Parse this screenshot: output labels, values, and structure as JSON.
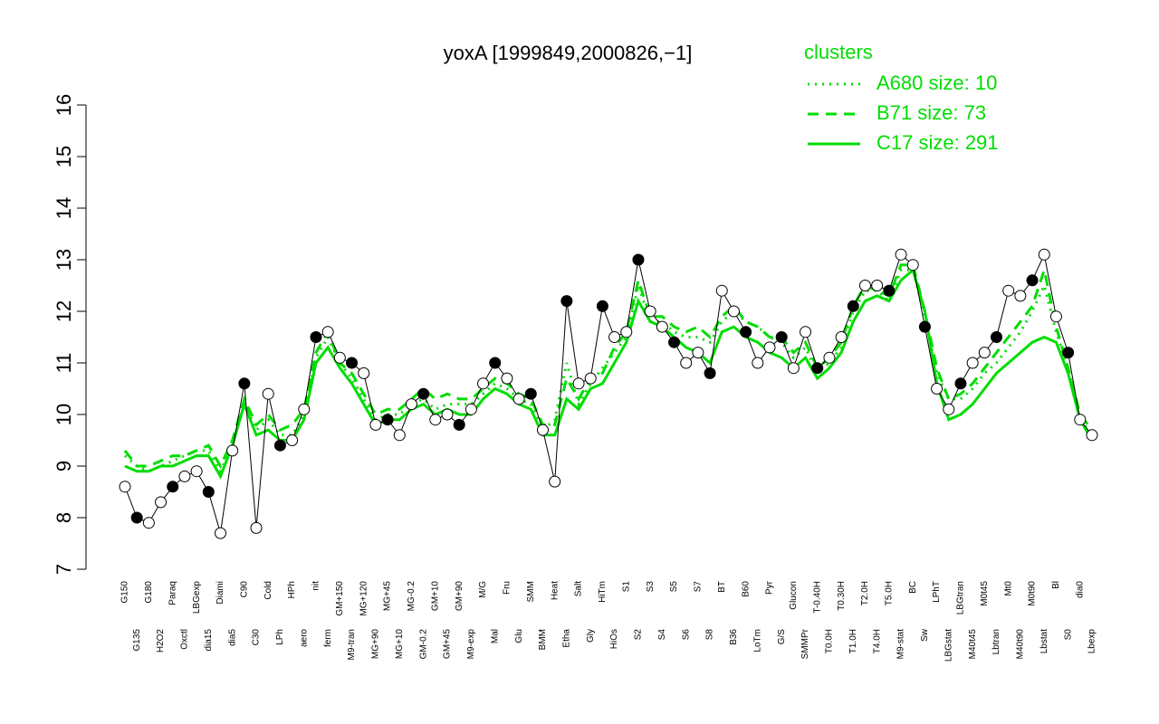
{
  "chart_data": {
    "type": "line",
    "title": "yoxA [1999849,2000826,−1]",
    "legend_title": "clusters",
    "categories": [
      "G150",
      "G135",
      "G180",
      "H2O2",
      "Paraq",
      "Oxctl",
      "LBGexp",
      "dia15",
      "Diami",
      "dia5",
      "C90",
      "C30",
      "Cold",
      "LPh",
      "HPh",
      "aero",
      "nit",
      "ferm",
      "GM+150",
      "M9-tran",
      "MG+120",
      "MG+90",
      "MG+45",
      "MG+10",
      "MG-0.2",
      "GM-0.2",
      "GM+10",
      "GM+45",
      "GM+90",
      "M9-exp",
      "M/G",
      "Mal",
      "Fru",
      "Glu",
      "SMM",
      "BMM",
      "Heat",
      "Etha",
      "Salt",
      "Gly",
      "HiTm",
      "HiOs",
      "S1",
      "S2",
      "S3",
      "S4",
      "S5",
      "S6",
      "S7",
      "S8",
      "BT",
      "B36",
      "B60",
      "LoTm",
      "Pyr",
      "G/S",
      "Glucon",
      "SMMPr",
      "T-0.40H",
      "T0.0H",
      "T0.30H",
      "T1.0H",
      "T2.0H",
      "T4.0H",
      "T5.0H",
      "M9-stat",
      "BC",
      "Sw",
      "LPhT",
      "LBGstat",
      "LBGtran",
      "M40t45",
      "M0t45",
      "Lbtran",
      "Mt0",
      "M40t90",
      "M0t90",
      "Lbstat",
      "Bl",
      "S0",
      "dia0",
      "Lbexp"
    ],
    "series": [
      {
        "style": "points",
        "color": "#000000",
        "values": [
          8.6,
          8.0,
          7.9,
          8.3,
          8.6,
          8.8,
          8.9,
          8.5,
          7.7,
          9.3,
          10.6,
          7.8,
          10.4,
          9.4,
          9.5,
          10.1,
          11.5,
          11.6,
          11.1,
          11.0,
          10.8,
          9.8,
          9.9,
          9.6,
          10.2,
          10.4,
          9.9,
          10.0,
          9.8,
          10.1,
          10.6,
          11.0,
          10.7,
          10.3,
          10.4,
          9.7,
          8.7,
          12.2,
          10.6,
          10.7,
          12.1,
          11.5,
          11.6,
          13.0,
          12.0,
          11.7,
          11.4,
          11.0,
          11.2,
          10.8,
          12.4,
          12.0,
          11.6,
          11.0,
          11.3,
          11.5,
          10.9,
          11.6,
          10.9,
          11.1,
          11.5,
          12.1,
          12.5,
          12.5,
          12.4,
          13.1,
          12.9,
          11.7,
          10.5,
          10.1,
          10.6,
          11.0,
          11.2,
          11.5,
          12.4,
          12.3,
          12.6,
          13.1,
          11.9,
          11.2,
          9.9,
          9.6
        ]
      },
      {
        "name": "A680 size: 10",
        "style": "dotted",
        "color": "#00dd00",
        "values": [
          9.2,
          9.0,
          8.9,
          9.0,
          9.1,
          9.2,
          9.3,
          9.3,
          8.9,
          9.4,
          10.2,
          9.7,
          9.9,
          9.6,
          9.6,
          10.0,
          11.1,
          11.5,
          11.0,
          10.7,
          10.3,
          9.9,
          10.0,
          10.0,
          10.2,
          10.3,
          10.1,
          10.2,
          10.2,
          10.2,
          10.4,
          10.6,
          10.5,
          10.3,
          10.2,
          9.7,
          9.9,
          11.0,
          10.2,
          10.6,
          10.9,
          11.2,
          11.5,
          12.5,
          11.8,
          11.8,
          11.6,
          11.5,
          11.5,
          11.4,
          11.8,
          12.0,
          11.8,
          11.7,
          11.5,
          11.4,
          11.1,
          11.3,
          10.8,
          11.0,
          11.3,
          12.0,
          12.4,
          12.4,
          12.2,
          12.8,
          12.8,
          11.9,
          10.8,
          10.3,
          10.3,
          10.5,
          10.8,
          11.0,
          11.3,
          11.6,
          12.0,
          12.5,
          11.6,
          10.9,
          9.9,
          9.6
        ]
      },
      {
        "name": "B71 size: 73",
        "style": "dashed",
        "color": "#00dd00",
        "values": [
          9.3,
          9.0,
          9.0,
          9.1,
          9.2,
          9.2,
          9.3,
          9.4,
          9.0,
          9.5,
          10.3,
          9.8,
          10.0,
          9.7,
          9.8,
          10.1,
          11.2,
          11.6,
          11.0,
          10.8,
          10.4,
          10.0,
          10.1,
          10.1,
          10.3,
          10.5,
          10.3,
          10.4,
          10.3,
          10.3,
          10.5,
          10.7,
          10.6,
          10.4,
          10.3,
          9.8,
          9.8,
          10.7,
          10.3,
          10.7,
          10.8,
          11.3,
          11.6,
          12.6,
          11.9,
          11.9,
          11.7,
          11.6,
          11.7,
          11.5,
          11.9,
          12.1,
          11.8,
          11.7,
          11.5,
          11.5,
          11.2,
          11.4,
          10.9,
          11.1,
          11.4,
          12.1,
          12.5,
          12.4,
          12.3,
          12.9,
          12.9,
          12.0,
          10.9,
          10.3,
          10.4,
          10.6,
          10.9,
          11.2,
          11.5,
          11.8,
          12.1,
          12.8,
          11.7,
          10.9,
          10.0,
          9.7
        ]
      },
      {
        "name": "C17 size: 291",
        "style": "solid",
        "color": "#00dd00",
        "values": [
          9.0,
          8.9,
          8.9,
          9.0,
          9.0,
          9.1,
          9.2,
          9.2,
          8.8,
          9.4,
          10.2,
          9.6,
          9.7,
          9.5,
          9.5,
          9.9,
          11.0,
          11.3,
          10.9,
          10.6,
          10.2,
          9.8,
          9.9,
          9.9,
          10.1,
          10.2,
          10.0,
          10.1,
          10.0,
          10.0,
          10.3,
          10.5,
          10.4,
          10.2,
          10.1,
          9.6,
          9.6,
          10.3,
          10.1,
          10.5,
          10.6,
          11.0,
          11.4,
          12.2,
          11.8,
          11.7,
          11.5,
          11.3,
          11.2,
          11.0,
          11.6,
          11.7,
          11.5,
          11.4,
          11.2,
          11.1,
          10.9,
          11.1,
          10.7,
          10.9,
          11.2,
          11.8,
          12.2,
          12.3,
          12.2,
          12.6,
          12.8,
          12.0,
          10.6,
          9.9,
          10.0,
          10.2,
          10.5,
          10.8,
          11.0,
          11.2,
          11.4,
          11.5,
          11.4,
          10.8,
          9.9,
          9.5
        ]
      }
    ],
    "ylim": [
      7,
      16
    ],
    "yticks": [
      7,
      8,
      9,
      10,
      11,
      12,
      13,
      14,
      15,
      16
    ]
  }
}
